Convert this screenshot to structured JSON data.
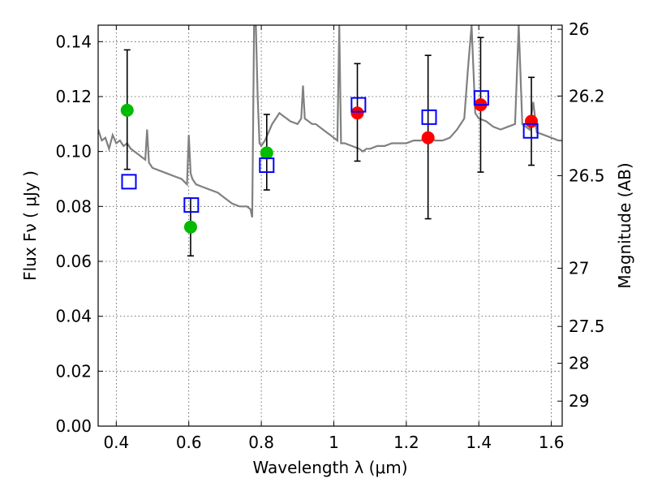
{
  "chart_data": {
    "type": "scatter",
    "xlabel": "Wavelength  λ (μm)",
    "ylabel": "Flux  Fν  ( μJy )",
    "y2label": "Magnitude (AB)",
    "xlim": [
      0.35,
      1.63
    ],
    "ylim": [
      0.0,
      0.146
    ],
    "grid": true,
    "x_ticks": [
      0.4,
      0.6,
      0.8,
      1.0,
      1.2,
      1.4,
      1.6
    ],
    "x_tick_labels": [
      "0.4",
      "0.6",
      "0.8",
      "1",
      "1.2",
      "1.4",
      "1.6"
    ],
    "y_ticks": [
      0.0,
      0.02,
      0.04,
      0.06,
      0.08,
      0.1,
      0.12,
      0.14
    ],
    "y_tick_labels": [
      "0.00",
      "0.02",
      "0.04",
      "0.06",
      "0.08",
      "0.10",
      "0.12",
      "0.14"
    ],
    "right_axis_ticks": [
      {
        "label": "26",
        "flux": 0.1445
      },
      {
        "label": "26.2",
        "flux": 0.1202
      },
      {
        "label": "26.5",
        "flux": 0.0912
      },
      {
        "label": "27",
        "flux": 0.0575
      },
      {
        "label": "27.5",
        "flux": 0.0363
      },
      {
        "label": "28",
        "flux": 0.0229
      },
      {
        "label": "29",
        "flux": 0.0091
      }
    ],
    "series": [
      {
        "marker": "circle",
        "color": "#00bb00",
        "x": [
          0.43,
          0.605,
          0.815
        ],
        "y": [
          0.115,
          0.0725,
          0.0995
        ],
        "yerr_low": [
          0.0935,
          0.062,
          0.086
        ],
        "yerr_high": [
          0.137,
          0.083,
          0.1135
        ]
      },
      {
        "marker": "circle",
        "color": "#ff0000",
        "x": [
          1.065,
          1.26,
          1.405,
          1.545
        ],
        "y": [
          0.114,
          0.105,
          0.117,
          0.111
        ],
        "yerr_low": [
          0.0965,
          0.0755,
          0.0925,
          0.095
        ],
        "yerr_high": [
          0.132,
          0.135,
          0.1415,
          0.127
        ]
      },
      {
        "marker": "square",
        "color": "#0000ff",
        "x": [
          0.435,
          0.607,
          0.815,
          1.068,
          1.263,
          1.407,
          1.543
        ],
        "y": [
          0.089,
          0.0805,
          0.095,
          0.117,
          0.1125,
          0.1195,
          0.1075
        ]
      }
    ],
    "spectrum": {
      "color": "#808080",
      "x": [
        0.35,
        0.36,
        0.37,
        0.38,
        0.39,
        0.4,
        0.41,
        0.42,
        0.43,
        0.44,
        0.45,
        0.46,
        0.47,
        0.48,
        0.485,
        0.49,
        0.495,
        0.5,
        0.52,
        0.54,
        0.56,
        0.58,
        0.595,
        0.6,
        0.605,
        0.61,
        0.62,
        0.64,
        0.66,
        0.68,
        0.7,
        0.72,
        0.74,
        0.76,
        0.77,
        0.775,
        0.78,
        0.785,
        0.79,
        0.795,
        0.8,
        0.81,
        0.82,
        0.83,
        0.84,
        0.85,
        0.86,
        0.87,
        0.88,
        0.9,
        0.91,
        0.915,
        0.92,
        0.93,
        0.94,
        0.95,
        0.96,
        0.97,
        0.98,
        0.99,
        1.0,
        1.01,
        1.015,
        1.02,
        1.03,
        1.05,
        1.07,
        1.08,
        1.09,
        1.1,
        1.12,
        1.14,
        1.16,
        1.18,
        1.2,
        1.22,
        1.24,
        1.26,
        1.28,
        1.3,
        1.32,
        1.34,
        1.36,
        1.37,
        1.38,
        1.39,
        1.4,
        1.42,
        1.44,
        1.46,
        1.48,
        1.5,
        1.51,
        1.52,
        1.53,
        1.54,
        1.55,
        1.56,
        1.58,
        1.6,
        1.62,
        1.63
      ],
      "y": [
        0.108,
        0.104,
        0.105,
        0.101,
        0.106,
        0.103,
        0.104,
        0.102,
        0.103,
        0.101,
        0.1,
        0.099,
        0.098,
        0.097,
        0.108,
        0.096,
        0.095,
        0.094,
        0.093,
        0.092,
        0.091,
        0.09,
        0.088,
        0.106,
        0.092,
        0.09,
        0.088,
        0.087,
        0.086,
        0.085,
        0.083,
        0.081,
        0.08,
        0.08,
        0.079,
        0.076,
        0.146,
        0.146,
        0.12,
        0.103,
        0.102,
        0.104,
        0.107,
        0.11,
        0.112,
        0.114,
        0.113,
        0.112,
        0.111,
        0.11,
        0.112,
        0.124,
        0.112,
        0.111,
        0.11,
        0.11,
        0.109,
        0.108,
        0.107,
        0.106,
        0.105,
        0.104,
        0.146,
        0.103,
        0.103,
        0.102,
        0.101,
        0.1,
        0.101,
        0.101,
        0.102,
        0.102,
        0.103,
        0.103,
        0.103,
        0.104,
        0.104,
        0.105,
        0.104,
        0.104,
        0.105,
        0.108,
        0.112,
        0.13,
        0.146,
        0.114,
        0.112,
        0.111,
        0.109,
        0.108,
        0.109,
        0.11,
        0.146,
        0.11,
        0.109,
        0.108,
        0.118,
        0.107,
        0.106,
        0.105,
        0.104,
        0.104
      ]
    }
  }
}
